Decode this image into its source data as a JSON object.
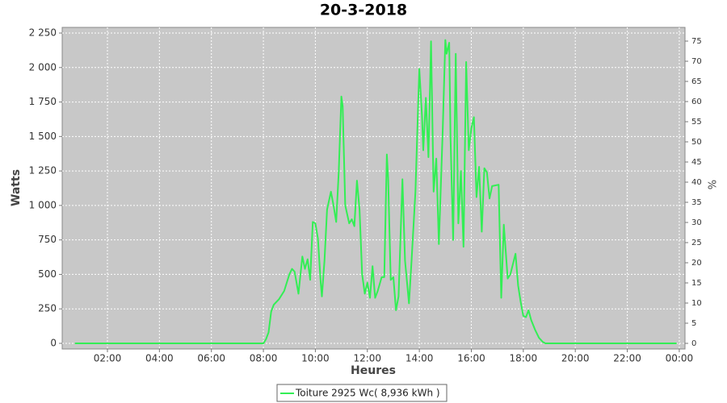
{
  "chart_data": {
    "type": "line",
    "title": "20-3-2018",
    "x_label": "Heures",
    "y_label": "Watts",
    "y2_label": "%",
    "x": [
      0.75,
      7.9,
      8.0,
      8.1,
      8.2,
      8.3,
      8.4,
      8.6,
      8.8,
      9.0,
      9.1,
      9.2,
      9.35,
      9.5,
      9.6,
      9.7,
      9.8,
      9.9,
      10.0,
      10.1,
      10.2,
      10.25,
      10.35,
      10.45,
      10.6,
      10.7,
      10.8,
      10.9,
      11.0,
      11.05,
      11.15,
      11.3,
      11.4,
      11.5,
      11.6,
      11.7,
      11.8,
      11.9,
      12.0,
      12.1,
      12.2,
      12.3,
      12.4,
      12.55,
      12.65,
      12.75,
      12.8,
      12.9,
      13.0,
      13.1,
      13.2,
      13.35,
      13.45,
      13.6,
      13.7,
      13.85,
      13.95,
      14.0,
      14.1,
      14.15,
      14.25,
      14.35,
      14.45,
      14.55,
      14.65,
      14.75,
      14.9,
      15.0,
      15.05,
      15.15,
      15.2,
      15.3,
      15.4,
      15.5,
      15.6,
      15.7,
      15.8,
      15.9,
      16.0,
      16.1,
      16.2,
      16.3,
      16.4,
      16.5,
      16.6,
      16.7,
      16.8,
      17.05,
      17.15,
      17.25,
      17.4,
      17.5,
      17.7,
      17.8,
      17.9,
      18.0,
      18.1,
      18.2,
      18.3,
      18.45,
      18.6,
      18.75,
      18.85,
      23.9
    ],
    "series": [
      {
        "name": "Toiture 2925 Wc( 8,936 kWh )",
        "color": "#33ee55",
        "values": [
          0,
          0,
          0,
          30,
          80,
          230,
          280,
          320,
          380,
          500,
          540,
          520,
          360,
          630,
          540,
          610,
          460,
          880,
          870,
          760,
          450,
          340,
          600,
          970,
          1100,
          1000,
          880,
          1250,
          1790,
          1720,
          1000,
          870,
          900,
          850,
          1180,
          970,
          500,
          360,
          440,
          330,
          560,
          330,
          380,
          480,
          480,
          1370,
          1200,
          460,
          480,
          240,
          340,
          1190,
          600,
          290,
          600,
          1100,
          1700,
          1990,
          1650,
          1400,
          1780,
          1350,
          2190,
          1100,
          1340,
          720,
          1550,
          2200,
          2100,
          2180,
          1500,
          750,
          2100,
          870,
          1250,
          700,
          2040,
          1400,
          1560,
          1640,
          1060,
          1280,
          810,
          1270,
          1240,
          1050,
          1140,
          1150,
          330,
          860,
          470,
          500,
          650,
          420,
          300,
          200,
          190,
          240,
          170,
          100,
          40,
          10,
          0,
          0
        ]
      }
    ],
    "xlim": [
      0.26,
      24.22
    ],
    "xticks": [
      {
        "value": 2,
        "label": "02:00"
      },
      {
        "value": 4,
        "label": "04:00"
      },
      {
        "value": 6,
        "label": "06:00"
      },
      {
        "value": 8,
        "label": "08:00"
      },
      {
        "value": 10,
        "label": "10:00"
      },
      {
        "value": 12,
        "label": "12:00"
      },
      {
        "value": 14,
        "label": "14:00"
      },
      {
        "value": 16,
        "label": "16:00"
      },
      {
        "value": 18,
        "label": "18:00"
      },
      {
        "value": 20,
        "label": "20:00"
      },
      {
        "value": 22,
        "label": "22:00"
      },
      {
        "value": 24,
        "label": "00:00"
      }
    ],
    "ylim": [
      -41,
      2291
    ],
    "yticks": [
      0,
      250,
      500,
      750,
      {
        "value": 1000,
        "label": "1 000"
      },
      {
        "value": 1250,
        "label": "1 250"
      },
      {
        "value": 1500,
        "label": "1 500"
      },
      {
        "value": 1750,
        "label": "1 750"
      },
      {
        "value": 2000,
        "label": "2 000"
      },
      {
        "value": 2250,
        "label": "2 250"
      }
    ],
    "y2lim": [
      -1.4,
      78.4
    ],
    "y2ticks": [
      0,
      5,
      10,
      15,
      20,
      25,
      30,
      35,
      40,
      45,
      50,
      55,
      60,
      65,
      70,
      75
    ],
    "grid": true
  }
}
